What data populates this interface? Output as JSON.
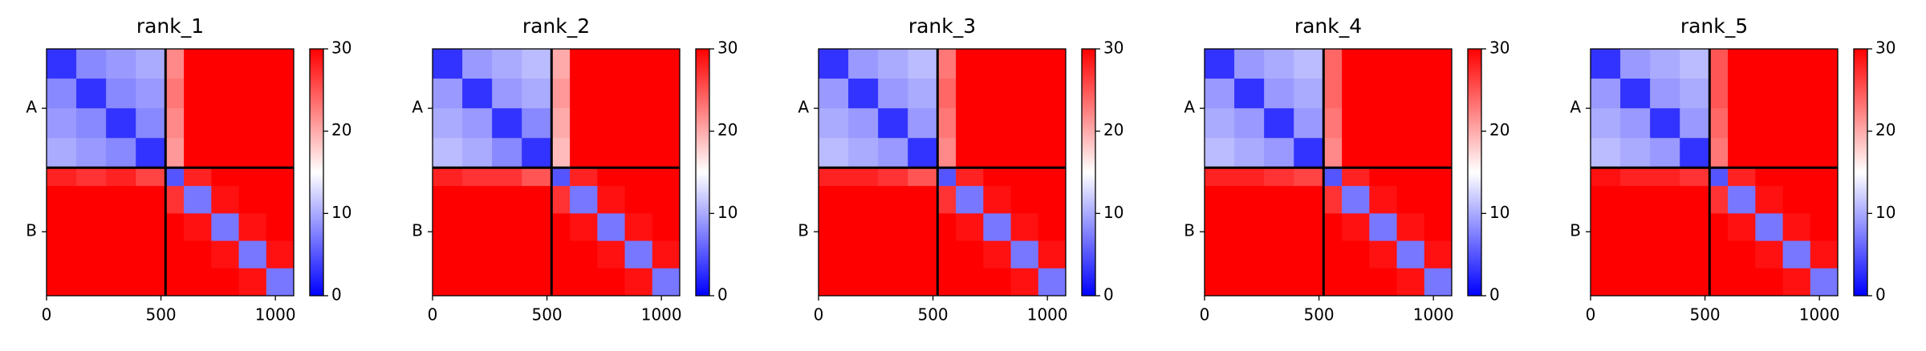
{
  "chart_data": [
    {
      "type": "heatmap",
      "title": "rank_1",
      "bins": [
        0,
        130,
        260,
        390,
        520,
        600,
        720,
        840,
        960,
        1080
      ],
      "xlim": [
        0,
        1080
      ],
      "ylim": [
        1080,
        0
      ],
      "xticks": [
        0,
        500,
        1000
      ],
      "yticks": [
        {
          "value": 260,
          "label": "A"
        },
        {
          "value": 800,
          "label": "B"
        }
      ],
      "chain_breaks": [
        520
      ],
      "clim": [
        0,
        30
      ],
      "cbar_ticks": [
        0,
        10,
        20,
        30
      ],
      "colormap": [
        "#0000ff",
        "#ffffff",
        "#ff0000"
      ],
      "values": [
        [
          3,
          8,
          9,
          10,
          22,
          30,
          30,
          30,
          30
        ],
        [
          8,
          3,
          8,
          9,
          23,
          30,
          30,
          30,
          30
        ],
        [
          9,
          8,
          3,
          8,
          22,
          30,
          30,
          30,
          30
        ],
        [
          10,
          9,
          8,
          3,
          21,
          30,
          30,
          30,
          30
        ],
        [
          28,
          27,
          28,
          26,
          5,
          28,
          30,
          30,
          30
        ],
        [
          30,
          30,
          30,
          30,
          27,
          7,
          29,
          30,
          30
        ],
        [
          30,
          30,
          30,
          30,
          30,
          29,
          7,
          29,
          30
        ],
        [
          30,
          30,
          30,
          30,
          30,
          30,
          29,
          7,
          29
        ],
        [
          30,
          30,
          30,
          30,
          30,
          30,
          30,
          29,
          7
        ]
      ]
    },
    {
      "type": "heatmap",
      "title": "rank_2",
      "bins": [
        0,
        130,
        260,
        390,
        520,
        600,
        720,
        840,
        960,
        1080
      ],
      "xlim": [
        0,
        1080
      ],
      "ylim": [
        1080,
        0
      ],
      "xticks": [
        0,
        500,
        1000
      ],
      "yticks": [
        {
          "value": 260,
          "label": "A"
        },
        {
          "value": 800,
          "label": "B"
        }
      ],
      "chain_breaks": [
        520
      ],
      "clim": [
        0,
        30
      ],
      "cbar_ticks": [
        0,
        10,
        20,
        30
      ],
      "colormap": [
        "#0000ff",
        "#ffffff",
        "#ff0000"
      ],
      "values": [
        [
          3,
          9,
          10,
          11,
          20,
          30,
          30,
          30,
          30
        ],
        [
          9,
          3,
          9,
          10,
          21,
          30,
          30,
          30,
          30
        ],
        [
          10,
          9,
          3,
          8,
          20,
          30,
          30,
          30,
          30
        ],
        [
          11,
          10,
          8,
          3,
          19,
          30,
          30,
          30,
          30
        ],
        [
          28,
          27,
          27,
          25,
          5,
          28,
          30,
          30,
          30
        ],
        [
          30,
          30,
          30,
          30,
          27,
          7,
          29,
          30,
          30
        ],
        [
          30,
          30,
          30,
          30,
          30,
          29,
          7,
          29,
          30
        ],
        [
          30,
          30,
          30,
          30,
          30,
          30,
          29,
          7,
          29
        ],
        [
          30,
          30,
          30,
          30,
          30,
          30,
          30,
          29,
          7
        ]
      ]
    },
    {
      "type": "heatmap",
      "title": "rank_3",
      "bins": [
        0,
        130,
        260,
        390,
        520,
        600,
        720,
        840,
        960,
        1080
      ],
      "xlim": [
        0,
        1080
      ],
      "ylim": [
        1080,
        0
      ],
      "xticks": [
        0,
        500,
        1000
      ],
      "yticks": [
        {
          "value": 260,
          "label": "A"
        },
        {
          "value": 800,
          "label": "B"
        }
      ],
      "chain_breaks": [
        520
      ],
      "clim": [
        0,
        30
      ],
      "cbar_ticks": [
        0,
        10,
        20,
        30
      ],
      "colormap": [
        "#0000ff",
        "#ffffff",
        "#ff0000"
      ],
      "values": [
        [
          3,
          9,
          10,
          11,
          23,
          30,
          30,
          30,
          30
        ],
        [
          9,
          3,
          9,
          10,
          24,
          30,
          30,
          30,
          30
        ],
        [
          10,
          9,
          3,
          9,
          23,
          30,
          30,
          30,
          30
        ],
        [
          11,
          10,
          9,
          3,
          22,
          30,
          30,
          30,
          30
        ],
        [
          28,
          28,
          27,
          25,
          5,
          28,
          30,
          30,
          30
        ],
        [
          30,
          30,
          30,
          30,
          27,
          7,
          29,
          30,
          30
        ],
        [
          30,
          30,
          30,
          30,
          30,
          29,
          7,
          29,
          30
        ],
        [
          30,
          30,
          30,
          30,
          30,
          30,
          29,
          7,
          29
        ],
        [
          30,
          30,
          30,
          30,
          30,
          30,
          30,
          29,
          7
        ]
      ]
    },
    {
      "type": "heatmap",
      "title": "rank_4",
      "bins": [
        0,
        130,
        260,
        390,
        520,
        600,
        720,
        840,
        960,
        1080
      ],
      "xlim": [
        0,
        1080
      ],
      "ylim": [
        1080,
        0
      ],
      "xticks": [
        0,
        500,
        1000
      ],
      "yticks": [
        {
          "value": 260,
          "label": "A"
        },
        {
          "value": 800,
          "label": "B"
        }
      ],
      "chain_breaks": [
        520
      ],
      "clim": [
        0,
        30
      ],
      "cbar_ticks": [
        0,
        10,
        20,
        30
      ],
      "colormap": [
        "#0000ff",
        "#ffffff",
        "#ff0000"
      ],
      "values": [
        [
          3,
          9,
          10,
          11,
          24,
          30,
          30,
          30,
          30
        ],
        [
          9,
          3,
          9,
          10,
          24,
          30,
          30,
          30,
          30
        ],
        [
          10,
          9,
          3,
          9,
          23,
          30,
          30,
          30,
          30
        ],
        [
          11,
          10,
          9,
          3,
          22,
          30,
          30,
          30,
          30
        ],
        [
          28,
          28,
          27,
          26,
          5,
          28,
          30,
          30,
          30
        ],
        [
          30,
          30,
          30,
          30,
          27,
          7,
          29,
          30,
          30
        ],
        [
          30,
          30,
          30,
          30,
          30,
          29,
          7,
          29,
          30
        ],
        [
          30,
          30,
          30,
          30,
          30,
          30,
          29,
          7,
          29
        ],
        [
          30,
          30,
          30,
          30,
          30,
          30,
          30,
          29,
          7
        ]
      ]
    },
    {
      "type": "heatmap",
      "title": "rank_5",
      "bins": [
        0,
        130,
        260,
        390,
        520,
        600,
        720,
        840,
        960,
        1080
      ],
      "xlim": [
        0,
        1080
      ],
      "ylim": [
        1080,
        0
      ],
      "xticks": [
        0,
        500,
        1000
      ],
      "yticks": [
        {
          "value": 260,
          "label": "A"
        },
        {
          "value": 800,
          "label": "B"
        }
      ],
      "chain_breaks": [
        520
      ],
      "clim": [
        0,
        30
      ],
      "cbar_ticks": [
        0,
        10,
        20,
        30
      ],
      "colormap": [
        "#0000ff",
        "#ffffff",
        "#ff0000"
      ],
      "values": [
        [
          3,
          9,
          10,
          11,
          25,
          30,
          30,
          30,
          30
        ],
        [
          9,
          3,
          9,
          10,
          25,
          30,
          30,
          30,
          30
        ],
        [
          10,
          9,
          3,
          9,
          24,
          30,
          30,
          30,
          30
        ],
        [
          11,
          10,
          9,
          3,
          23,
          30,
          30,
          30,
          30
        ],
        [
          29,
          28,
          28,
          27,
          5,
          28,
          30,
          30,
          30
        ],
        [
          30,
          30,
          30,
          30,
          27,
          7,
          29,
          30,
          30
        ],
        [
          30,
          30,
          30,
          30,
          30,
          29,
          7,
          29,
          30
        ],
        [
          30,
          30,
          30,
          30,
          30,
          30,
          29,
          7,
          29
        ],
        [
          30,
          30,
          30,
          30,
          30,
          30,
          30,
          29,
          7
        ]
      ]
    }
  ]
}
